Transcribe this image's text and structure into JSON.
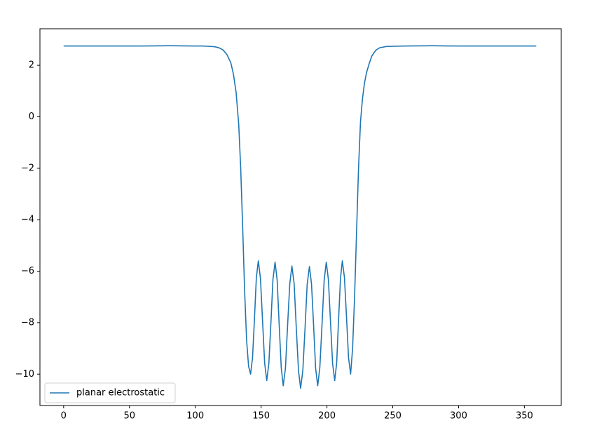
{
  "chart_data": {
    "type": "line",
    "x": [
      0,
      20,
      40,
      60,
      80,
      100,
      105,
      110,
      115,
      118,
      121,
      124,
      127,
      129,
      131,
      133,
      134.5,
      136,
      137.5,
      139,
      140.5,
      142,
      143.5,
      145.0,
      146.4,
      147.9,
      149.5,
      151.1,
      152.7,
      154.3,
      155.9,
      157.5,
      159.0,
      160.6,
      162.2,
      163.7,
      165.3,
      166.8,
      168.5,
      170.1,
      171.8,
      173.4,
      175.1,
      176.7,
      178.4,
      180,
      181.7,
      183.4,
      185.0,
      186.7,
      188.3,
      189.9,
      191.4,
      193,
      194.6,
      196.3,
      197.9,
      199.5,
      201.1,
      202.7,
      204.3,
      205.9,
      207.4,
      208.8,
      210.3,
      211.7,
      213.3,
      214.9,
      216.4,
      218,
      219.5,
      221,
      222.5,
      224,
      225.5,
      227,
      228.5,
      230,
      232,
      234,
      237,
      240,
      245,
      250,
      260,
      280,
      300,
      320,
      340,
      359
    ],
    "series": [
      {
        "name": "planar electrostatic",
        "color": "#1f77b4",
        "values": [
          2.75,
          2.75,
          2.75,
          2.75,
          2.76,
          2.75,
          2.75,
          2.74,
          2.72,
          2.68,
          2.6,
          2.42,
          2.1,
          1.65,
          0.95,
          -0.3,
          -2.0,
          -4.3,
          -6.8,
          -8.7,
          -9.7,
          -10.0,
          -9.36,
          -7.8,
          -6.24,
          -5.6,
          -6.28,
          -7.93,
          -9.57,
          -10.25,
          -9.58,
          -7.95,
          -6.32,
          -5.65,
          -6.35,
          -8.05,
          -9.75,
          -10.45,
          -9.77,
          -8.13,
          -6.48,
          -5.8,
          -6.49,
          -8.18,
          -9.86,
          -10.55,
          -9.86,
          -8.19,
          -6.51,
          -5.82,
          -6.5,
          -8.14,
          -9.77,
          -10.45,
          -9.75,
          -8.05,
          -6.35,
          -5.65,
          -6.32,
          -7.95,
          -9.58,
          -10.25,
          -9.57,
          -7.93,
          -6.28,
          -5.6,
          -6.24,
          -7.8,
          -9.36,
          -10.0,
          -9.0,
          -7.0,
          -4.5,
          -2.0,
          -0.2,
          0.7,
          1.3,
          1.7,
          2.05,
          2.35,
          2.58,
          2.68,
          2.73,
          2.74,
          2.75,
          2.76,
          2.75,
          2.75,
          2.75,
          2.75
        ]
      }
    ],
    "xlim": [
      -18,
      378
    ],
    "ylim": [
      -11.22,
      3.42
    ],
    "xticks": [
      0,
      50,
      100,
      150,
      200,
      250,
      300,
      350
    ],
    "yticks": [
      {
        "value": -10,
        "label": "−10"
      },
      {
        "value": -8,
        "label": "−8"
      },
      {
        "value": -6,
        "label": "−6"
      },
      {
        "value": -4,
        "label": "−4"
      },
      {
        "value": -2,
        "label": "−2"
      },
      0,
      2
    ],
    "legend": "lower left"
  }
}
